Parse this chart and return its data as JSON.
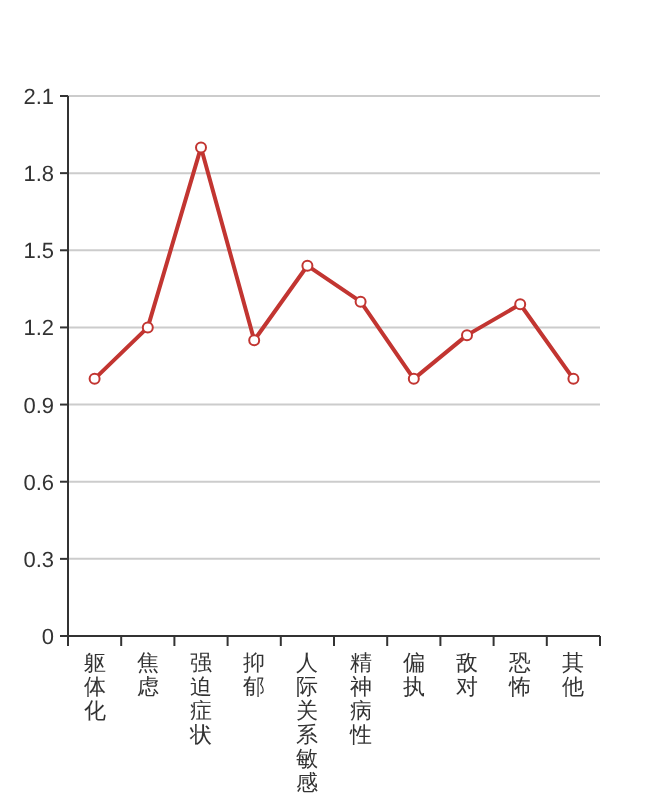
{
  "chart_data": {
    "type": "line",
    "categories": [
      "躯体化",
      "焦虑",
      "强迫症状",
      "抑郁",
      "人际关系敏感",
      "精神病性",
      "偏执",
      "敌对",
      "恐怖",
      "其他"
    ],
    "series": [
      {
        "color": "#c23531",
        "values": [
          1.0,
          1.2,
          1.9,
          1.15,
          1.44,
          1.3,
          1.0,
          1.17,
          1.29,
          1.0
        ]
      }
    ],
    "ylim": [
      0,
      2.1
    ],
    "yticks": [
      0,
      0.3,
      0.6,
      0.9,
      1.2,
      1.5,
      1.8,
      2.1
    ],
    "grid": "y",
    "marker": "circle",
    "line_style": "solid"
  }
}
